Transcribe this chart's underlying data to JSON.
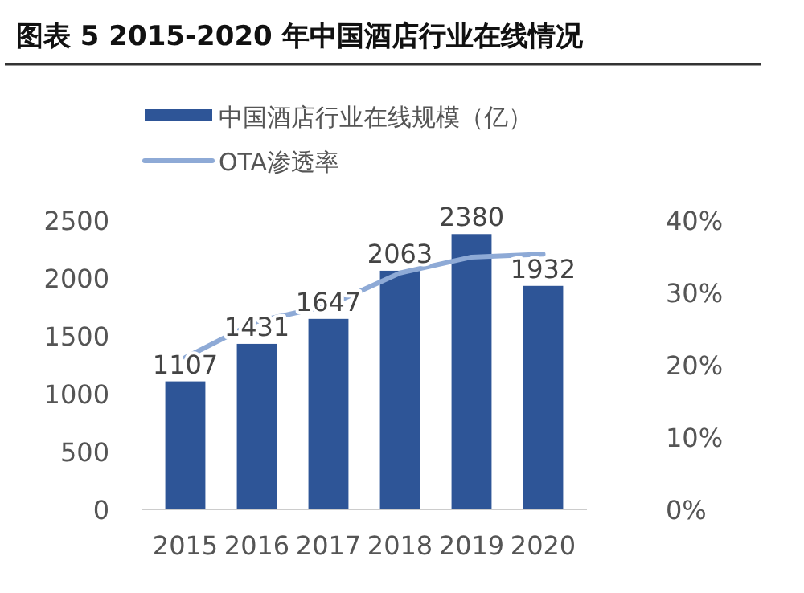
{
  "chart_data": {
    "type": "bar",
    "title": "图表 5 2015-2020 年中国酒店行业在线情况",
    "categories": [
      "2015",
      "2016",
      "2017",
      "2018",
      "2019",
      "2020"
    ],
    "series": [
      {
        "name": "中国酒店行业在线规模（亿）",
        "color": "#2e5597",
        "values": [
          1107,
          1431,
          1647,
          2063,
          2380,
          1932
        ],
        "value_labels": [
          "1107",
          "1431",
          "1647",
          "2063",
          "2380",
          "1932"
        ]
      },
      {
        "name": "OTA渗透率",
        "type": "line",
        "axis": "y2",
        "color": "#8eaad6",
        "values": [
          21,
          26,
          28.2,
          32.7,
          34.9,
          35.3
        ]
      }
    ],
    "ylim": [
      0,
      2500
    ],
    "yticks": [
      0,
      500,
      1000,
      1500,
      2000,
      2500
    ],
    "y2lim": [
      0,
      40
    ],
    "y2ticks": [
      {
        "value": 0,
        "label": "0%"
      },
      {
        "value": 10,
        "label": "10%"
      },
      {
        "value": 20,
        "label": "20%"
      },
      {
        "value": 30,
        "label": "30%"
      },
      {
        "value": 40,
        "label": "40%"
      }
    ],
    "legend": "top left",
    "grid": false
  }
}
